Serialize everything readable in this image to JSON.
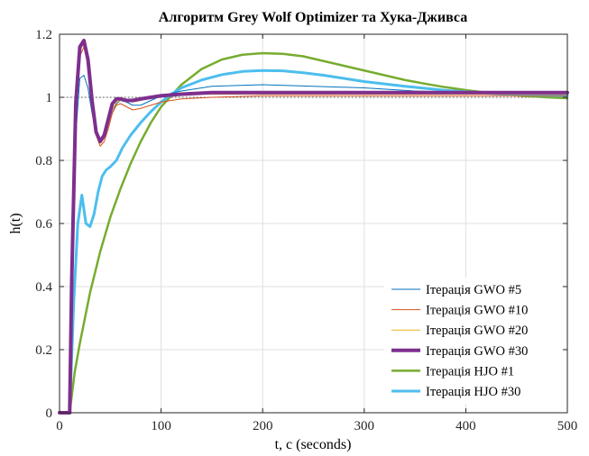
{
  "chart_data": {
    "type": "line",
    "title": "Алгоритм Grey Wolf Optimizer та Хука-Дживса",
    "xlabel": "t, c (seconds)",
    "ylabel": "h(t)",
    "xlim": [
      0,
      500
    ],
    "ylim": [
      0,
      1.2
    ],
    "xticks": [
      0,
      100,
      200,
      300,
      400,
      500
    ],
    "yticks": [
      0,
      0.2,
      0.4,
      0.6,
      0.8,
      1,
      1.2
    ],
    "xtick_labels": [
      "0",
      "100",
      "200",
      "300",
      "400",
      "500"
    ],
    "ytick_labels": [
      "0",
      "0.2",
      "0.4",
      "0.6",
      "0.8",
      "1",
      "1.2"
    ],
    "grid": true,
    "legend_position": "bottom-right",
    "reference_line": {
      "y": 1,
      "style": "dotted",
      "color": "#555555"
    },
    "series": [
      {
        "name": "Ітерація GWO #5",
        "color": "#0072BD",
        "width": 1,
        "x": [
          0,
          10,
          12,
          16,
          20,
          24,
          28,
          32,
          36,
          40,
          44,
          48,
          52,
          56,
          60,
          66,
          72,
          80,
          90,
          100,
          120,
          150,
          200,
          250,
          300,
          350,
          400,
          450,
          500
        ],
        "y": [
          0,
          0,
          0.4,
          0.88,
          1.06,
          1.07,
          1.03,
          0.95,
          0.89,
          0.86,
          0.87,
          0.91,
          0.95,
          0.98,
          0.99,
          0.985,
          0.975,
          0.975,
          0.99,
          1.005,
          1.02,
          1.035,
          1.04,
          1.035,
          1.03,
          1.02,
          1.015,
          1.01,
          1.01
        ]
      },
      {
        "name": "Ітерація GWO #10",
        "color": "#D95319",
        "width": 1,
        "x": [
          0,
          10,
          12,
          16,
          20,
          24,
          28,
          32,
          36,
          40,
          44,
          48,
          52,
          56,
          60,
          66,
          72,
          80,
          90,
          100,
          120,
          150,
          200,
          250,
          300,
          350,
          400,
          450,
          500
        ],
        "y": [
          0,
          0,
          0.4,
          0.95,
          1.13,
          1.16,
          1.1,
          0.98,
          0.88,
          0.845,
          0.86,
          0.9,
          0.95,
          0.975,
          0.98,
          0.97,
          0.96,
          0.965,
          0.975,
          0.985,
          0.995,
          1.0,
          1.005,
          1.005,
          1.005,
          1.005,
          1.005,
          1.005,
          1.005
        ]
      },
      {
        "name": "Ітерація GWO #20",
        "color": "#EDB120",
        "width": 1,
        "x": [
          0,
          10,
          12,
          16,
          20,
          24,
          28,
          32,
          36,
          40,
          44,
          48,
          52,
          56,
          60,
          66,
          72,
          80,
          90,
          100,
          120,
          150,
          200,
          250,
          300,
          350,
          400,
          450,
          500
        ],
        "y": [
          0,
          0,
          0.4,
          0.97,
          1.15,
          1.17,
          1.11,
          0.99,
          0.89,
          0.855,
          0.87,
          0.91,
          0.96,
          0.985,
          0.99,
          0.99,
          0.985,
          0.99,
          1.0,
          1.005,
          1.01,
          1.01,
          1.01,
          1.01,
          1.01,
          1.01,
          1.01,
          1.01,
          1.01
        ]
      },
      {
        "name": "Ітерація GWO #30",
        "color": "#7E2F8E",
        "width": 4,
        "x": [
          0,
          10,
          12,
          16,
          20,
          24,
          28,
          32,
          36,
          40,
          44,
          48,
          52,
          56,
          60,
          66,
          72,
          80,
          90,
          100,
          120,
          150,
          200,
          250,
          300,
          350,
          400,
          450,
          500
        ],
        "y": [
          0,
          0,
          0.42,
          0.98,
          1.16,
          1.18,
          1.12,
          0.99,
          0.89,
          0.86,
          0.88,
          0.93,
          0.98,
          0.995,
          0.995,
          0.99,
          0.99,
          0.995,
          1.0,
          1.005,
          1.01,
          1.015,
          1.015,
          1.015,
          1.015,
          1.015,
          1.015,
          1.015,
          1.015
        ]
      },
      {
        "name": "Ітерація HJO #1",
        "color": "#77AC30",
        "width": 2.5,
        "x": [
          0,
          10,
          15,
          20,
          30,
          40,
          50,
          60,
          70,
          80,
          90,
          100,
          120,
          140,
          160,
          180,
          200,
          220,
          240,
          260,
          280,
          300,
          320,
          340,
          360,
          380,
          400,
          420,
          440,
          460,
          480,
          500
        ],
        "y": [
          0,
          0,
          0.13,
          0.22,
          0.38,
          0.51,
          0.62,
          0.71,
          0.79,
          0.86,
          0.92,
          0.97,
          1.04,
          1.09,
          1.12,
          1.135,
          1.14,
          1.138,
          1.13,
          1.115,
          1.1,
          1.085,
          1.07,
          1.055,
          1.043,
          1.032,
          1.023,
          1.015,
          1.009,
          1.004,
          1.0,
          0.997
        ]
      },
      {
        "name": "Ітерація HJO #30",
        "color": "#4DBEEE",
        "width": 3,
        "x": [
          0,
          10,
          14,
          18,
          22,
          26,
          30,
          34,
          38,
          42,
          46,
          50,
          56,
          62,
          70,
          80,
          90,
          100,
          110,
          120,
          140,
          160,
          180,
          200,
          220,
          240,
          260,
          280,
          300,
          340,
          380,
          420,
          460,
          500
        ],
        "y": [
          0,
          0,
          0.35,
          0.6,
          0.69,
          0.6,
          0.59,
          0.63,
          0.7,
          0.75,
          0.77,
          0.78,
          0.8,
          0.84,
          0.88,
          0.92,
          0.955,
          0.985,
          1.01,
          1.03,
          1.055,
          1.072,
          1.082,
          1.085,
          1.084,
          1.078,
          1.07,
          1.06,
          1.05,
          1.035,
          1.022,
          1.013,
          1.007,
          1.005
        ]
      }
    ]
  }
}
